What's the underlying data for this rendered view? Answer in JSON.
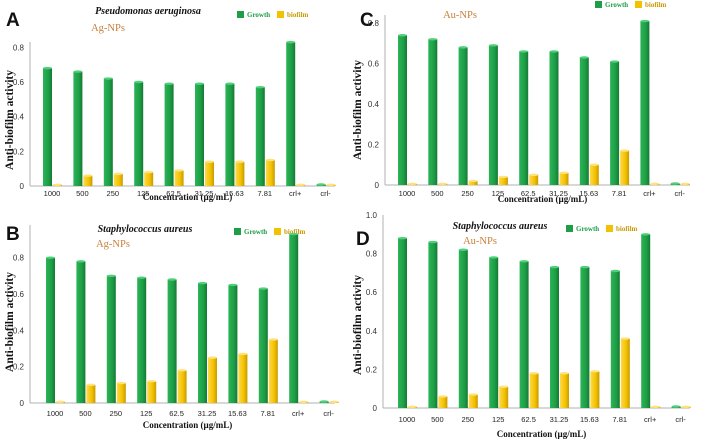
{
  "colors": {
    "growth": "#1e9e47",
    "growth_dark": "#147a33",
    "biofilm": "#f2c200",
    "biofilm_dark": "#c99a00",
    "np_label": "#c8803b",
    "axis": "#b0b0b0"
  },
  "chart_data": [
    {
      "panel": "A",
      "type": "bar",
      "organism": "Pseudomonas aeruginosa",
      "nanoparticle": "Ag-NPs",
      "xlabel": "Concentration (µg/mL)",
      "ylabel": "Anti-biofilm activity",
      "ylim": [
        0,
        0.9
      ],
      "yticks": [
        "0",
        "0.2",
        "0.4",
        "0.6",
        "0.8"
      ],
      "categories": [
        "1000",
        "500",
        "250",
        "125",
        "62.5",
        "31.25",
        "15.63",
        "7.81",
        "crl+",
        "crl-"
      ],
      "series": [
        {
          "name": "Growth",
          "values": [
            0.68,
            0.66,
            0.62,
            0.6,
            0.59,
            0.59,
            0.59,
            0.57,
            0.83,
            0.0
          ]
        },
        {
          "name": "biofilm",
          "values": [
            0.0,
            0.06,
            0.07,
            0.08,
            0.09,
            0.14,
            0.14,
            0.15,
            0.0,
            0.0
          ]
        }
      ]
    },
    {
      "panel": "C",
      "type": "bar",
      "organism": "",
      "nanoparticle": "Au-NPs",
      "xlabel": "Concentration (µg/mL)",
      "ylabel": "Anti-biofilm activity",
      "ylim": [
        0,
        0.84
      ],
      "yticks": [
        "0",
        "0.2",
        "0.4",
        "0.6",
        "0.8"
      ],
      "categories": [
        "1000",
        "500",
        "250",
        "125",
        "62.5",
        "31.25",
        "15.63",
        "7.81",
        "crl+",
        "crl-"
      ],
      "series": [
        {
          "name": "Growth",
          "values": [
            0.74,
            0.72,
            0.68,
            0.69,
            0.66,
            0.66,
            0.63,
            0.61,
            0.81,
            0.0
          ]
        },
        {
          "name": "biofilm",
          "values": [
            0.0,
            0.0,
            0.02,
            0.04,
            0.05,
            0.06,
            0.1,
            0.17,
            0.0,
            0.0
          ]
        }
      ]
    },
    {
      "panel": "B",
      "type": "bar",
      "organism": "Staphylococcus aureus",
      "nanoparticle": "Ag-NPs",
      "xlabel": "Concentration (µg/mL)",
      "ylabel": "Anti-biofilm activity",
      "ylim": [
        0,
        0.98
      ],
      "yticks": [
        "0",
        "0.2",
        "0.4",
        "0.6",
        "0.8"
      ],
      "categories": [
        "1000",
        "500",
        "250",
        "125",
        "62.5",
        "31.25",
        "15.63",
        "7.81",
        "crl+",
        "crl-"
      ],
      "series": [
        {
          "name": "Growth",
          "values": [
            0.8,
            0.78,
            0.7,
            0.69,
            0.68,
            0.66,
            0.65,
            0.63,
            0.93,
            0.0
          ]
        },
        {
          "name": "biofilm",
          "values": [
            0.0,
            0.1,
            0.11,
            0.12,
            0.18,
            0.25,
            0.27,
            0.35,
            0.0,
            0.0
          ]
        }
      ]
    },
    {
      "panel": "D",
      "type": "bar",
      "organism": "Staphylococcus aureus",
      "nanoparticle": "Au-NPs",
      "xlabel": "Concentration (µg/mL)",
      "ylabel": "Anti-biofilm activity",
      "ylim": [
        0,
        1.0
      ],
      "yticks": [
        "0",
        "0.2",
        "0.4",
        "0.6",
        "0.8",
        "1.0"
      ],
      "categories": [
        "1000",
        "500",
        "250",
        "125",
        "62.5",
        "31.25",
        "15.63",
        "7.81",
        "crl+",
        "crl-"
      ],
      "series": [
        {
          "name": "Growth",
          "values": [
            0.88,
            0.86,
            0.82,
            0.78,
            0.76,
            0.73,
            0.73,
            0.71,
            0.9,
            0.0
          ]
        },
        {
          "name": "biofilm",
          "values": [
            0.0,
            0.06,
            0.07,
            0.11,
            0.18,
            0.18,
            0.19,
            0.36,
            0.0,
            0.0
          ]
        }
      ]
    }
  ]
}
